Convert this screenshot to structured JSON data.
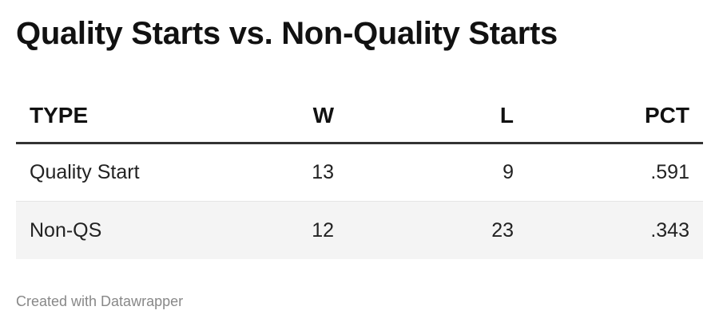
{
  "title": "Quality Starts vs. Non-Quality Starts",
  "table": {
    "columns": [
      "TYPE",
      "W",
      "L",
      "PCT"
    ],
    "rows": [
      [
        "Quality Start",
        "13",
        "9",
        ".591"
      ],
      [
        "Non-QS",
        "12",
        "23",
        ".343"
      ]
    ]
  },
  "footer": "Created with Datawrapper",
  "chart_data": {
    "type": "table",
    "title": "Quality Starts vs. Non-Quality Starts",
    "columns": [
      "TYPE",
      "W",
      "L",
      "PCT"
    ],
    "rows": [
      {
        "TYPE": "Quality Start",
        "W": 13,
        "L": 9,
        "PCT": 0.591
      },
      {
        "TYPE": "Non-QS",
        "W": 12,
        "L": 23,
        "PCT": 0.343
      }
    ]
  },
  "colors": {
    "header_rule": "#333333",
    "row_divider": "#e4e4e4",
    "alt_row_bg": "#f4f4f4",
    "footer_text": "#888888"
  }
}
